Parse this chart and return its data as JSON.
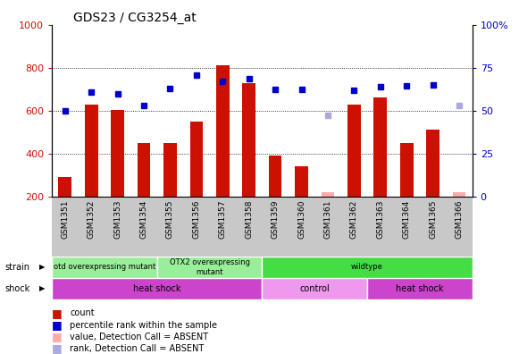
{
  "title": "GDS23 / CG3254_at",
  "samples": [
    "GSM1351",
    "GSM1352",
    "GSM1353",
    "GSM1354",
    "GSM1355",
    "GSM1356",
    "GSM1357",
    "GSM1358",
    "GSM1359",
    "GSM1360",
    "GSM1361",
    "GSM1362",
    "GSM1363",
    "GSM1364",
    "GSM1365",
    "GSM1366"
  ],
  "bar_values": [
    290,
    630,
    605,
    450,
    450,
    550,
    810,
    730,
    390,
    340,
    null,
    630,
    660,
    450,
    510,
    null
  ],
  "bar_absent": [
    null,
    null,
    null,
    null,
    null,
    null,
    null,
    null,
    null,
    null,
    220,
    null,
    null,
    null,
    null,
    220
  ],
  "blue_values": [
    600,
    685,
    680,
    625,
    705,
    765,
    735,
    750,
    700,
    700,
    null,
    695,
    710,
    715,
    720,
    null
  ],
  "blue_absent": [
    null,
    null,
    null,
    null,
    null,
    null,
    null,
    null,
    null,
    null,
    580,
    null,
    null,
    null,
    null,
    625
  ],
  "ylim_left": [
    200,
    1000
  ],
  "ylim_right": [
    0,
    100
  ],
  "yticks_left": [
    200,
    400,
    600,
    800,
    1000
  ],
  "yticks_right": [
    0,
    25,
    50,
    75,
    100
  ],
  "bar_color": "#CC1100",
  "bar_absent_color": "#FFAAAA",
  "blue_color": "#0000CC",
  "blue_absent_color": "#AAAADD",
  "strain_groups": [
    {
      "label": "otd overexpressing mutant",
      "start": 0,
      "end": 4,
      "color": "#99EE99"
    },
    {
      "label": "OTX2 overexpressing\nmutant",
      "start": 4,
      "end": 8,
      "color": "#99EE99"
    },
    {
      "label": "wildtype",
      "start": 8,
      "end": 16,
      "color": "#44DD44"
    }
  ],
  "shock_groups": [
    {
      "label": "heat shock",
      "start": 0,
      "end": 8,
      "color": "#CC44CC"
    },
    {
      "label": "control",
      "start": 8,
      "end": 12,
      "color": "#EE99EE"
    },
    {
      "label": "heat shock",
      "start": 12,
      "end": 16,
      "color": "#CC44CC"
    }
  ],
  "tick_color_left": "#CC1100",
  "tick_color_right": "#0000CC",
  "label_bg_color": "#C8C8C8"
}
